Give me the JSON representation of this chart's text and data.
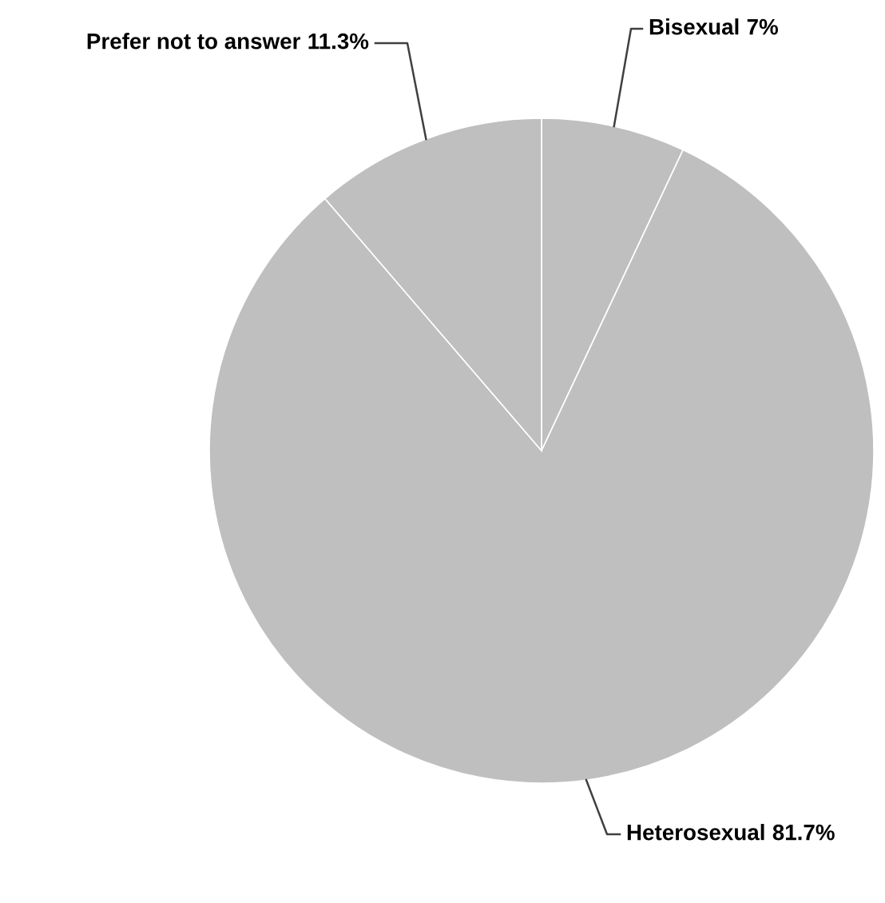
{
  "chart_data": {
    "type": "pie",
    "categories": [
      "Bisexual",
      "Heterosexual",
      "Prefer not to answer"
    ],
    "values": [
      7,
      81.7,
      11.3
    ],
    "value_labels": [
      "7%",
      "81.7%",
      "11.3%"
    ],
    "colors": [
      "#bfbfbf",
      "#bfbfbf",
      "#bfbfbf"
    ],
    "legend": false
  }
}
